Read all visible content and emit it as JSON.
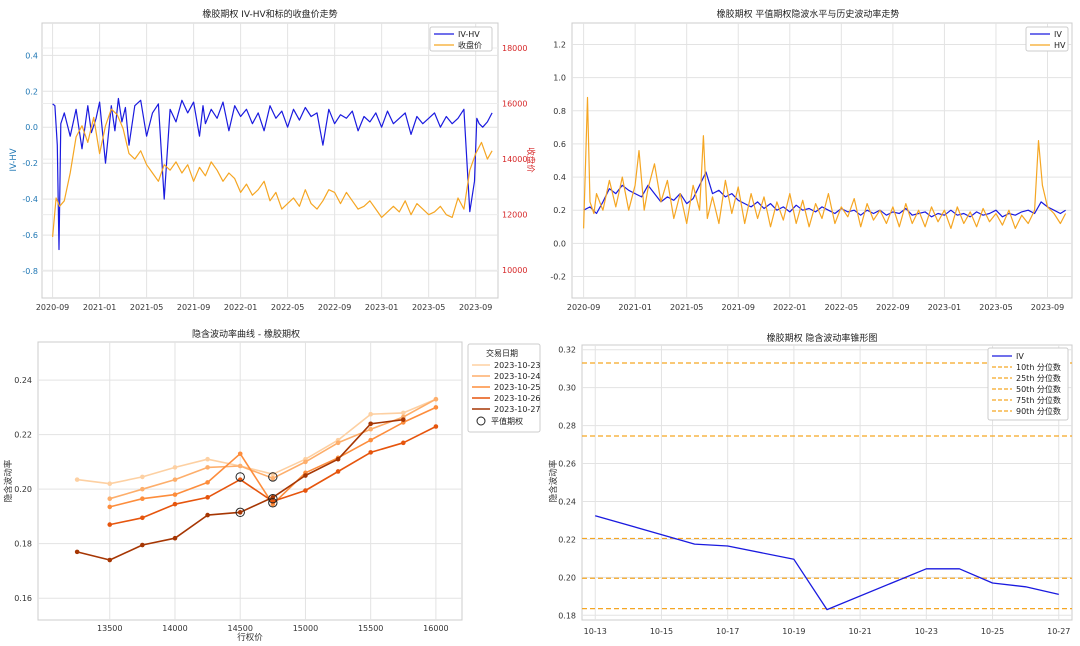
{
  "chart_data": [
    {
      "type": "line",
      "title": "橡胶期权 IV-HV和标的收盘价走势",
      "ylabel": "IV-HV",
      "y2label": "收盘价",
      "ylim": [
        -0.95,
        0.58
      ],
      "y2lim": [
        9000,
        18900
      ],
      "yticks": [
        "0.4",
        "0.2",
        "0.0",
        "-0.2",
        "-0.4",
        "-0.6",
        "-0.8"
      ],
      "ytick_values": [
        0.4,
        0.2,
        0.0,
        -0.2,
        -0.4,
        -0.6,
        -0.8
      ],
      "y2ticks": [
        "18000",
        "16000",
        "14000",
        "12000",
        "10000"
      ],
      "y2tick_values": [
        18000,
        16000,
        14000,
        12000,
        10000
      ],
      "xticks": [
        "2020-09",
        "2021-01",
        "2021-05",
        "2021-09",
        "2022-01",
        "2022-05",
        "2022-09",
        "2023-01",
        "2023-05",
        "2023-09"
      ],
      "xrange_months": [
        -0.9,
        37.9
      ],
      "legend": [
        "IV-HV",
        "收盘价"
      ],
      "series": [
        {
          "name": "IV-HV",
          "color": "#1a1adf",
          "axis": "left",
          "x": [
            0.0,
            0.2,
            0.4,
            0.55,
            0.7,
            1.0,
            1.5,
            2.0,
            2.5,
            3.0,
            3.3,
            3.7,
            4.0,
            4.5,
            5.0,
            5.3,
            5.6,
            5.9,
            6.2,
            6.5,
            7.0,
            7.5,
            8.0,
            8.5,
            9.0,
            9.5,
            10.0,
            10.5,
            11.0,
            11.5,
            12.0,
            12.5,
            12.8,
            13.0,
            13.5,
            14.0,
            14.5,
            15.0,
            15.5,
            16.0,
            16.5,
            17.0,
            17.5,
            18.0,
            18.5,
            19.0,
            19.5,
            20.0,
            20.5,
            21.0,
            21.5,
            22.0,
            22.5,
            23.0,
            23.5,
            24.0,
            24.5,
            25.0,
            25.5,
            26.0,
            26.5,
            27.0,
            27.5,
            28.0,
            28.5,
            29.0,
            29.5,
            30.0,
            30.5,
            31.0,
            31.5,
            32.0,
            32.5,
            33.0,
            33.5,
            34.0,
            34.5,
            35.0,
            35.5,
            35.9,
            36.1,
            36.3,
            36.6,
            37.0,
            37.4
          ],
          "y": [
            0.13,
            0.12,
            -0.1,
            -0.68,
            0.02,
            0.08,
            -0.05,
            0.1,
            -0.12,
            0.12,
            -0.03,
            0.05,
            0.14,
            -0.2,
            0.12,
            -0.02,
            0.16,
            0.03,
            0.11,
            -0.1,
            0.12,
            0.15,
            -0.05,
            0.08,
            0.13,
            -0.4,
            0.1,
            0.03,
            0.15,
            0.08,
            0.14,
            -0.05,
            0.12,
            0.02,
            0.1,
            0.05,
            0.14,
            -0.02,
            0.12,
            0.06,
            0.1,
            0.02,
            0.08,
            -0.02,
            0.12,
            0.05,
            0.09,
            0.0,
            0.1,
            0.04,
            0.11,
            0.06,
            0.08,
            -0.1,
            0.1,
            0.02,
            0.07,
            0.05,
            0.09,
            -0.02,
            0.06,
            0.03,
            0.08,
            0.0,
            0.09,
            0.02,
            0.05,
            0.08,
            -0.04,
            0.06,
            0.02,
            0.05,
            0.08,
            0.0,
            0.06,
            0.02,
            0.05,
            0.1,
            -0.47,
            -0.3,
            0.05,
            0.02,
            0.0,
            0.03,
            0.08
          ]
        },
        {
          "name": "收盘价",
          "color": "#f5a623",
          "axis": "right",
          "x": [
            0.0,
            0.3,
            0.6,
            1.0,
            1.5,
            2.0,
            2.5,
            3.0,
            3.5,
            4.0,
            4.5,
            5.0,
            5.5,
            6.0,
            6.5,
            7.0,
            7.5,
            8.0,
            8.5,
            9.0,
            9.5,
            10.0,
            10.5,
            11.0,
            11.5,
            12.0,
            12.5,
            13.0,
            13.5,
            14.0,
            14.5,
            15.0,
            15.5,
            16.0,
            16.5,
            17.0,
            17.5,
            18.0,
            18.5,
            19.0,
            19.5,
            20.0,
            20.5,
            21.0,
            21.5,
            22.0,
            22.5,
            23.0,
            23.5,
            24.0,
            24.5,
            25.0,
            25.5,
            26.0,
            26.5,
            27.0,
            27.5,
            28.0,
            28.5,
            29.0,
            29.5,
            30.0,
            30.5,
            31.0,
            31.5,
            32.0,
            32.5,
            33.0,
            33.5,
            34.0,
            34.5,
            35.0,
            35.5,
            36.0,
            36.5,
            37.0,
            37.4
          ],
          "y": [
            11200,
            12600,
            12300,
            12500,
            13500,
            14800,
            15200,
            14600,
            15500,
            14200,
            15200,
            15800,
            15600,
            15100,
            14200,
            14000,
            14300,
            13800,
            13500,
            13200,
            13800,
            13600,
            13900,
            13500,
            13800,
            13200,
            13700,
            13400,
            13900,
            13600,
            13200,
            13500,
            13300,
            12800,
            13100,
            12700,
            12900,
            13200,
            12500,
            12800,
            12200,
            12400,
            12600,
            12300,
            12900,
            12400,
            12200,
            12500,
            12900,
            12800,
            12400,
            12800,
            12500,
            12200,
            12300,
            12500,
            12200,
            11900,
            12100,
            12300,
            12100,
            12500,
            12000,
            12400,
            12200,
            12000,
            12100,
            12300,
            12000,
            11900,
            12600,
            12200,
            13600,
            14200,
            14600,
            14000,
            14300
          ]
        }
      ]
    },
    {
      "type": "line",
      "title": "橡胶期权 平值期权隐波水平与历史波动率走势",
      "ylim": [
        -0.33,
        1.33
      ],
      "yticks": [
        "1.2",
        "1.0",
        "0.8",
        "0.6",
        "0.4",
        "0.2",
        "0.0",
        "-0.2"
      ],
      "ytick_values": [
        1.2,
        1.0,
        0.8,
        0.6,
        0.4,
        0.2,
        0.0,
        -0.2
      ],
      "xticks": [
        "2020-09",
        "2021-01",
        "2021-05",
        "2021-09",
        "2022-01",
        "2022-05",
        "2022-09",
        "2023-01",
        "2023-05",
        "2023-09"
      ],
      "xrange_months": [
        -0.9,
        37.9
      ],
      "legend": [
        "IV",
        "HV"
      ],
      "series": [
        {
          "name": "IV",
          "color": "#1a1adf",
          "x": [
            0.0,
            0.5,
            1.0,
            1.5,
            2.0,
            2.5,
            3.0,
            3.5,
            4.0,
            4.5,
            5.0,
            5.5,
            6.0,
            6.5,
            7.0,
            7.5,
            8.0,
            8.5,
            9.0,
            9.5,
            10.0,
            10.5,
            11.0,
            11.5,
            12.0,
            12.5,
            13.0,
            13.5,
            14.0,
            14.5,
            15.0,
            15.5,
            16.0,
            16.5,
            17.0,
            17.5,
            18.0,
            18.5,
            19.0,
            19.5,
            20.0,
            20.5,
            21.0,
            21.5,
            22.0,
            22.5,
            23.0,
            23.5,
            24.0,
            24.5,
            25.0,
            25.5,
            26.0,
            26.5,
            27.0,
            27.5,
            28.0,
            28.5,
            29.0,
            29.5,
            30.0,
            30.5,
            31.0,
            31.5,
            32.0,
            32.5,
            33.0,
            33.5,
            34.0,
            34.5,
            35.0,
            35.5,
            36.0,
            36.5,
            37.0,
            37.4
          ],
          "y": [
            0.2,
            0.22,
            0.18,
            0.25,
            0.33,
            0.3,
            0.35,
            0.32,
            0.3,
            0.28,
            0.35,
            0.3,
            0.25,
            0.28,
            0.26,
            0.3,
            0.24,
            0.27,
            0.35,
            0.43,
            0.3,
            0.32,
            0.28,
            0.3,
            0.26,
            0.24,
            0.22,
            0.25,
            0.21,
            0.24,
            0.2,
            0.22,
            0.19,
            0.23,
            0.2,
            0.21,
            0.19,
            0.22,
            0.2,
            0.18,
            0.21,
            0.19,
            0.2,
            0.17,
            0.2,
            0.18,
            0.2,
            0.17,
            0.19,
            0.18,
            0.21,
            0.17,
            0.18,
            0.19,
            0.16,
            0.18,
            0.17,
            0.2,
            0.17,
            0.18,
            0.16,
            0.19,
            0.17,
            0.18,
            0.2,
            0.16,
            0.18,
            0.17,
            0.19,
            0.2,
            0.18,
            0.25,
            0.22,
            0.2,
            0.18,
            0.2
          ]
        },
        {
          "name": "HV",
          "color": "#f5a623",
          "x": [
            0.0,
            0.3,
            0.5,
            0.8,
            1.0,
            1.5,
            2.0,
            2.5,
            3.0,
            3.5,
            4.0,
            4.3,
            4.7,
            5.0,
            5.5,
            6.0,
            6.5,
            7.0,
            7.5,
            8.0,
            8.5,
            9.0,
            9.3,
            9.6,
            10.0,
            10.5,
            11.0,
            11.5,
            12.0,
            12.5,
            13.0,
            13.5,
            14.0,
            14.5,
            15.0,
            15.5,
            16.0,
            16.5,
            17.0,
            17.5,
            18.0,
            18.5,
            19.0,
            19.5,
            20.0,
            20.5,
            21.0,
            21.5,
            22.0,
            22.5,
            23.0,
            23.5,
            24.0,
            24.5,
            25.0,
            25.5,
            26.0,
            26.5,
            27.0,
            27.5,
            28.0,
            28.5,
            29.0,
            29.5,
            30.0,
            30.5,
            31.0,
            31.5,
            32.0,
            32.5,
            33.0,
            33.5,
            34.0,
            34.5,
            35.0,
            35.3,
            35.6,
            36.0,
            36.5,
            37.0,
            37.4
          ],
          "y": [
            0.09,
            0.88,
            0.25,
            0.18,
            0.3,
            0.2,
            0.38,
            0.22,
            0.4,
            0.2,
            0.35,
            0.56,
            0.2,
            0.33,
            0.48,
            0.25,
            0.38,
            0.15,
            0.3,
            0.12,
            0.35,
            0.2,
            0.65,
            0.15,
            0.28,
            0.12,
            0.38,
            0.18,
            0.34,
            0.12,
            0.3,
            0.15,
            0.28,
            0.1,
            0.25,
            0.14,
            0.3,
            0.12,
            0.26,
            0.1,
            0.24,
            0.15,
            0.3,
            0.12,
            0.22,
            0.16,
            0.27,
            0.1,
            0.24,
            0.14,
            0.2,
            0.12,
            0.22,
            0.1,
            0.24,
            0.12,
            0.2,
            0.1,
            0.22,
            0.13,
            0.2,
            0.09,
            0.22,
            0.12,
            0.19,
            0.1,
            0.21,
            0.13,
            0.18,
            0.11,
            0.2,
            0.09,
            0.17,
            0.12,
            0.2,
            0.62,
            0.35,
            0.22,
            0.18,
            0.12,
            0.18
          ]
        }
      ]
    },
    {
      "type": "line",
      "title": "隐含波动率曲线 - 橡胶期权",
      "xlabel": "行权价",
      "ylabel": "隐含波动率",
      "xlim": [
        12950,
        16200
      ],
      "ylim": [
        0.152,
        0.254
      ],
      "xticks": [
        "13500",
        "14000",
        "14500",
        "15000",
        "15500",
        "16000"
      ],
      "xtick_values": [
        13500,
        14000,
        14500,
        15000,
        15500,
        16000
      ],
      "yticks": [
        "0.24",
        "0.22",
        "0.20",
        "0.18",
        "0.16"
      ],
      "ytick_values": [
        0.24,
        0.22,
        0.2,
        0.18,
        0.16
      ],
      "legend_title": "交易日期",
      "atm_label": "平值期权",
      "strikes": [
        13250,
        13500,
        13750,
        14000,
        14250,
        14500,
        14750,
        15000,
        15250,
        15500,
        15750,
        16000
      ],
      "series": [
        {
          "name": "2023-10-23",
          "color": "#fdd0a2",
          "values": [
            0.2035,
            0.202,
            0.2045,
            0.208,
            0.211,
            0.2085,
            0.2055,
            0.211,
            0.218,
            0.2275,
            0.228,
            0.233
          ]
        },
        {
          "name": "2023-10-24",
          "color": "#fdae6b",
          "values": [
            null,
            0.1965,
            0.2,
            0.2035,
            0.208,
            0.2085,
            0.204,
            0.21,
            0.217,
            0.222,
            0.2265,
            0.233
          ]
        },
        {
          "name": "2023-10-25",
          "color": "#fd8d3c",
          "values": [
            null,
            0.1935,
            0.1965,
            0.198,
            0.2025,
            0.213,
            0.1945,
            0.206,
            0.2115,
            0.218,
            0.2245,
            0.23
          ]
        },
        {
          "name": "2023-10-26",
          "color": "#e6550d",
          "values": [
            null,
            0.187,
            0.1895,
            0.1945,
            0.197,
            0.2035,
            0.1955,
            0.1995,
            0.2065,
            0.2135,
            0.217,
            0.223
          ]
        },
        {
          "name": "2023-10-27",
          "color": "#a63603",
          "values": [
            0.177,
            0.174,
            0.1795,
            0.182,
            0.1905,
            0.1915,
            0.197,
            0.205,
            0.211,
            0.224,
            0.2255,
            null
          ]
        }
      ],
      "atm_points": [
        {
          "x": 14500,
          "y": 0.2045
        },
        {
          "x": 14500,
          "y": 0.1915
        },
        {
          "x": 14750,
          "y": 0.2045
        },
        {
          "x": 14750,
          "y": 0.1965
        },
        {
          "x": 14750,
          "y": 0.195
        }
      ]
    },
    {
      "type": "line",
      "title": "橡胶期权 隐含波动率锥形图",
      "ylabel": "隐含波动率",
      "ylim": [
        0.1775,
        0.3225
      ],
      "yticks": [
        "0.32",
        "0.30",
        "0.28",
        "0.26",
        "0.24",
        "0.22",
        "0.20",
        "0.18"
      ],
      "ytick_values": [
        0.32,
        0.3,
        0.28,
        0.26,
        0.24,
        0.22,
        0.2,
        0.18
      ],
      "xticks": [
        "10-13",
        "10-15",
        "10-17",
        "10-19",
        "10-21",
        "10-23",
        "10-25",
        "10-27"
      ],
      "xtick_days": [
        13,
        15,
        17,
        19,
        21,
        23,
        25,
        27
      ],
      "xlim_days": [
        12.6,
        27.4
      ],
      "series": [
        {
          "name": "IV",
          "color": "#1a1adf",
          "days": [
            13,
            16,
            17,
            19,
            20,
            23,
            24,
            25,
            26,
            27
          ],
          "values": [
            0.2325,
            0.2175,
            0.2165,
            0.2095,
            0.183,
            0.2045,
            0.2045,
            0.197,
            0.195,
            0.191
          ]
        }
      ],
      "percentiles": [
        {
          "name": "10th 分位数",
          "value": 0.1835,
          "color": "#f5a623"
        },
        {
          "name": "25th 分位数",
          "value": 0.1995,
          "color": "#f5a623"
        },
        {
          "name": "50th 分位数",
          "value": 0.2205,
          "color": "#f5a623"
        },
        {
          "name": "75th 分位数",
          "value": 0.2745,
          "color": "#f5a623"
        },
        {
          "name": "90th 分位数",
          "value": 0.313,
          "color": "#f5a623"
        }
      ]
    }
  ]
}
